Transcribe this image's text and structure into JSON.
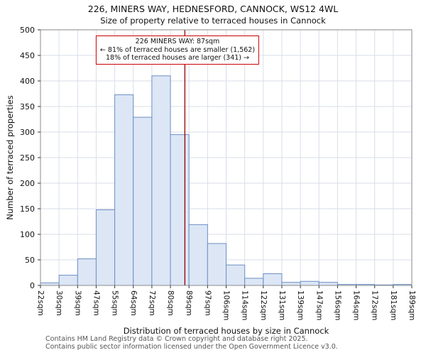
{
  "title": "226, MINERS WAY, HEDNESFORD, CANNOCK, WS12 4WL",
  "subtitle": "Size of property relative to terraced houses in Cannock",
  "annotation": {
    "line1": "226 MINERS WAY: 87sqm",
    "line2": "← 81% of terraced houses are smaller (1,562)",
    "line3": "18% of terraced houses are larger (341) →"
  },
  "footer": {
    "line1": "Contains HM Land Registry data © Crown copyright and database right 2025.",
    "line2": "Contains public sector information licensed under the Open Government Licence v3.0."
  },
  "chart_data": {
    "type": "bar",
    "title": "226, MINERS WAY, HEDNESFORD, CANNOCK, WS12 4WL",
    "subtitle": "Size of property relative to terraced houses in Cannock",
    "xlabel": "Distribution of terraced houses by size in Cannock",
    "ylabel": "Number of terraced properties",
    "categories": [
      "22sqm",
      "30sqm",
      "39sqm",
      "47sqm",
      "55sqm",
      "64sqm",
      "72sqm",
      "80sqm",
      "89sqm",
      "97sqm",
      "106sqm",
      "114sqm",
      "122sqm",
      "131sqm",
      "139sqm",
      "147sqm",
      "156sqm",
      "164sqm",
      "172sqm",
      "181sqm",
      "189sqm"
    ],
    "bin_edges_sqm": [
      22,
      30,
      39,
      47,
      55,
      64,
      72,
      80,
      89,
      97,
      106,
      114,
      122,
      131,
      139,
      147,
      156,
      164,
      172,
      181,
      189
    ],
    "values": [
      5,
      20,
      52,
      148,
      373,
      329,
      410,
      295,
      119,
      82,
      40,
      14,
      23,
      6,
      8,
      6,
      2,
      2,
      1,
      2
    ],
    "ylim": [
      0,
      500
    ],
    "yticks": [
      0,
      50,
      100,
      150,
      200,
      250,
      300,
      350,
      400,
      450,
      500
    ],
    "grid": true,
    "legend": "none",
    "marker": {
      "value_sqm": 87,
      "color": "#990000"
    },
    "bar_fill": "#dce6f5",
    "bar_stroke": "#6d8fc4",
    "grid_color": "#d8deea",
    "border_color": "#8a8a8a",
    "tick_color": "#333333"
  }
}
